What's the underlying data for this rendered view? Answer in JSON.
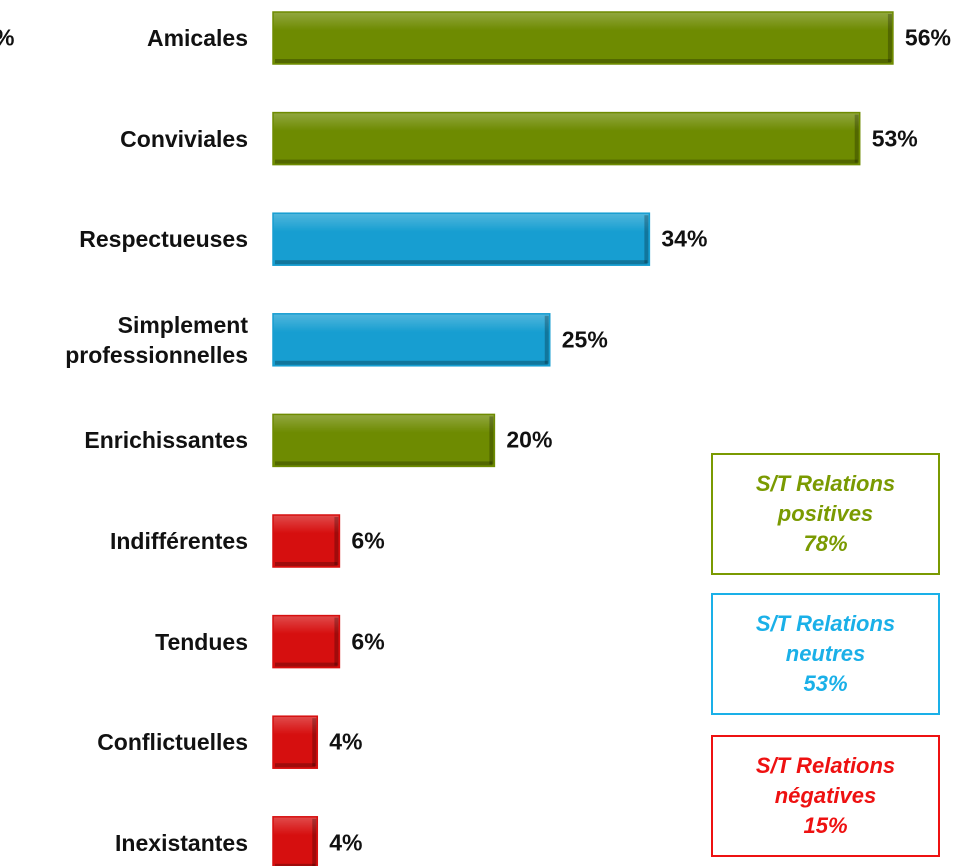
{
  "chart_data": {
    "type": "bar",
    "orientation": "horizontal",
    "annotations": [
      "%"
    ],
    "categories": [
      "Amicales",
      "Conviviales",
      "Respectueuses",
      "Simplement\nprofessionnelles",
      "Enrichissantes",
      "Indifférentes",
      "Tendues",
      "Conflictuelles",
      "Inexistantes"
    ],
    "values": [
      56,
      53,
      34,
      25,
      20,
      6,
      6,
      4,
      4
    ],
    "value_labels": [
      "56%",
      "53%",
      "34%",
      "25%",
      "20%",
      "6%",
      "6%",
      "4%",
      "4%"
    ],
    "colors": [
      "#7a9a01",
      "#7a9a01",
      "#1ab0e8",
      "#1ab0e8",
      "#7a9a01",
      "#ee1111",
      "#ee1111",
      "#ee1111",
      "#ee1111"
    ],
    "summaries": [
      {
        "label": "S/T Relations\npositives",
        "value": 78,
        "value_label": "78%",
        "color": "#7a9a01"
      },
      {
        "label": "S/T Relations\nneutres",
        "value": 53,
        "value_label": "53%",
        "color": "#1ab0e8"
      },
      {
        "label": "S/T Relations\nnégatives",
        "value": 15,
        "value_label": "15%",
        "color": "#ee1111"
      }
    ]
  }
}
